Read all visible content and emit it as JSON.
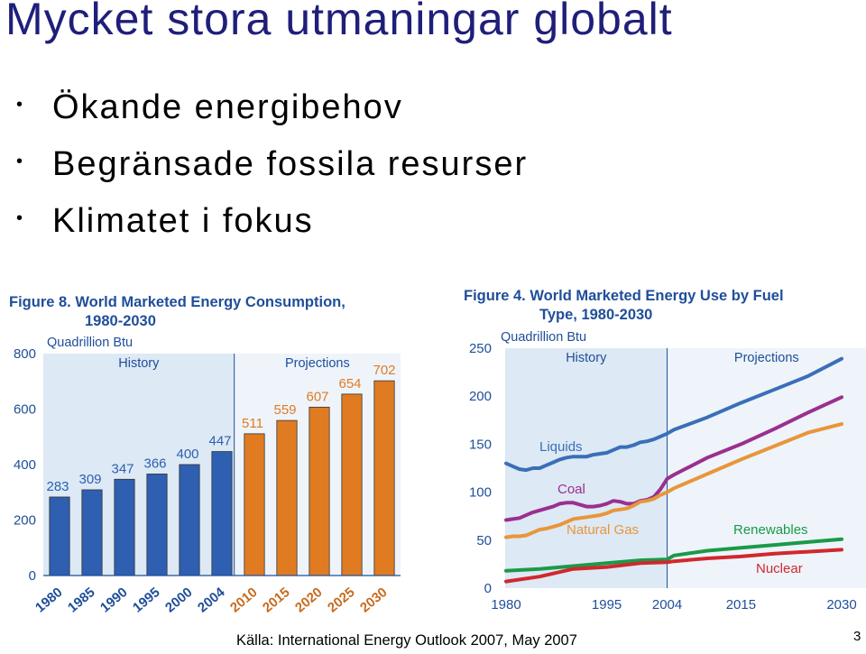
{
  "slide": {
    "title": "Mycket stora utmaningar globalt",
    "bullets": [
      "Ökande energibehov",
      "Begränsade fossila resurser",
      "Klimatet i fokus"
    ],
    "bullet_marker": "•",
    "source": "Källa: International Energy Outlook 2007, May 2007",
    "page_number": "3"
  },
  "colors": {
    "title": "#1f1f7a",
    "figure_text": "#1f4e9a",
    "history_bar": "#2e5fb0",
    "projection_bar": "#e07b22",
    "panel_history": "#dde9f4",
    "panel_projection": "#eef4fa",
    "liquids": "#3a6fb8",
    "coal": "#9b2f8f",
    "natural_gas": "#e8963a",
    "renewables": "#1a9a48",
    "nuclear": "#d0282e"
  },
  "chart_data": [
    {
      "type": "bar",
      "title": "Figure 8.  World Marketed Energy Consumption, 1980-2030",
      "title_lines": [
        "Figure 8.  World Marketed Energy Consumption,",
        "1980-2030"
      ],
      "ylabel": "Quadrillion Btu",
      "ylim": [
        0,
        800
      ],
      "yticks": [
        0,
        200,
        400,
        600,
        800
      ],
      "regions": [
        "History",
        "Projections"
      ],
      "categories": [
        "1980",
        "1985",
        "1990",
        "1995",
        "2000",
        "2004",
        "2010",
        "2015",
        "2020",
        "2025",
        "2030"
      ],
      "values": [
        283,
        309,
        347,
        366,
        400,
        447,
        511,
        559,
        607,
        654,
        702
      ],
      "projection_start_index": 6,
      "grid": false
    },
    {
      "type": "line",
      "title": "Figure 4.  World Marketed Energy Use by Fuel Type, 1980-2030",
      "title_lines": [
        "Figure 4.  World Marketed Energy Use by Fuel",
        "Type, 1980-2030"
      ],
      "ylabel": "Quadrillion Btu",
      "ylim": [
        0,
        250
      ],
      "yticks": [
        0,
        50,
        100,
        150,
        200,
        250
      ],
      "xlim": [
        1980,
        2030
      ],
      "xticks": [
        1980,
        1995,
        2004,
        2015,
        2030
      ],
      "regions": [
        "History",
        "Projections"
      ],
      "projection_start": 2004,
      "grid": false,
      "series": [
        {
          "name": "Liquids",
          "color": "#3a6fb8",
          "x": [
            1980,
            1981,
            1982,
            1983,
            1984,
            1985,
            1986,
            1987,
            1988,
            1989,
            1990,
            1991,
            1992,
            1993,
            1994,
            1995,
            1996,
            1997,
            1998,
            1999,
            2000,
            2001,
            2002,
            2003,
            2004,
            2005,
            2010,
            2015,
            2020,
            2025,
            2030
          ],
          "values": [
            130,
            127,
            124,
            123,
            125,
            125,
            128,
            131,
            134,
            136,
            137,
            137,
            137,
            139,
            140,
            141,
            144,
            147,
            147,
            149,
            152,
            153,
            155,
            158,
            161,
            165,
            178,
            193,
            207,
            221,
            239
          ]
        },
        {
          "name": "Coal",
          "color": "#9b2f8f",
          "x": [
            1980,
            1981,
            1982,
            1983,
            1984,
            1985,
            1986,
            1987,
            1988,
            1989,
            1990,
            1991,
            1992,
            1993,
            1994,
            1995,
            1996,
            1997,
            1998,
            1999,
            2000,
            2001,
            2002,
            2003,
            2004,
            2005,
            2010,
            2015,
            2020,
            2025,
            2030
          ],
          "values": [
            71,
            72,
            73,
            76,
            79,
            81,
            83,
            85,
            88,
            89,
            89,
            87,
            85,
            85,
            86,
            88,
            91,
            90,
            88,
            88,
            91,
            92,
            95,
            103,
            114,
            118,
            136,
            150,
            166,
            183,
            199
          ]
        },
        {
          "name": "Natural Gas",
          "color": "#e8963a",
          "x": [
            1980,
            1981,
            1982,
            1983,
            1984,
            1985,
            1986,
            1987,
            1988,
            1989,
            1990,
            1991,
            1992,
            1993,
            1994,
            1995,
            1996,
            1997,
            1998,
            1999,
            2000,
            2001,
            2002,
            2003,
            2004,
            2005,
            2010,
            2015,
            2020,
            2025,
            2030
          ],
          "values": [
            53,
            54,
            54,
            55,
            58,
            61,
            62,
            64,
            66,
            69,
            72,
            73,
            74,
            75,
            76,
            78,
            81,
            82,
            83,
            86,
            90,
            91,
            93,
            97,
            100,
            104,
            119,
            134,
            148,
            162,
            171
          ]
        },
        {
          "name": "Renewables",
          "color": "#1a9a48",
          "x": [
            1980,
            1985,
            1990,
            1995,
            2000,
            2004,
            2005,
            2010,
            2015,
            2020,
            2025,
            2030
          ],
          "values": [
            18,
            20,
            23,
            26,
            29,
            30,
            34,
            39,
            42,
            45,
            48,
            51
          ]
        },
        {
          "name": "Nuclear",
          "color": "#d0282e",
          "x": [
            1980,
            1985,
            1990,
            1995,
            2000,
            2004,
            2005,
            2010,
            2015,
            2020,
            2025,
            2030
          ],
          "values": [
            7,
            12,
            20,
            22,
            26,
            27,
            28,
            31,
            33,
            36,
            38,
            40
          ]
        }
      ]
    }
  ]
}
